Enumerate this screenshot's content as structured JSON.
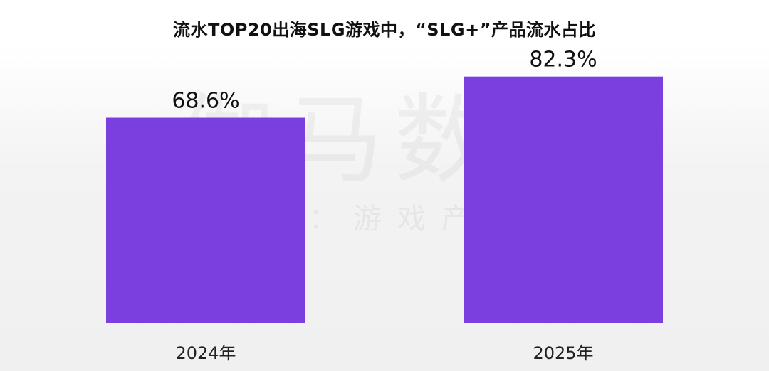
{
  "watermark": {
    "main": "伽马数据",
    "sub": "微信号：游戏产业报告"
  },
  "chart_data": {
    "type": "bar",
    "title": "流水TOP20出海SLG游戏中，“SLG+”产品流水占比",
    "categories": [
      "2024年",
      "2025年"
    ],
    "values": [
      68.6,
      82.3
    ],
    "value_labels": [
      "68.6%",
      "82.3%"
    ],
    "xlabel": "",
    "ylabel": "",
    "ylim": [
      0,
      100
    ],
    "grid": false,
    "bar_color": "#7b3fe0"
  }
}
